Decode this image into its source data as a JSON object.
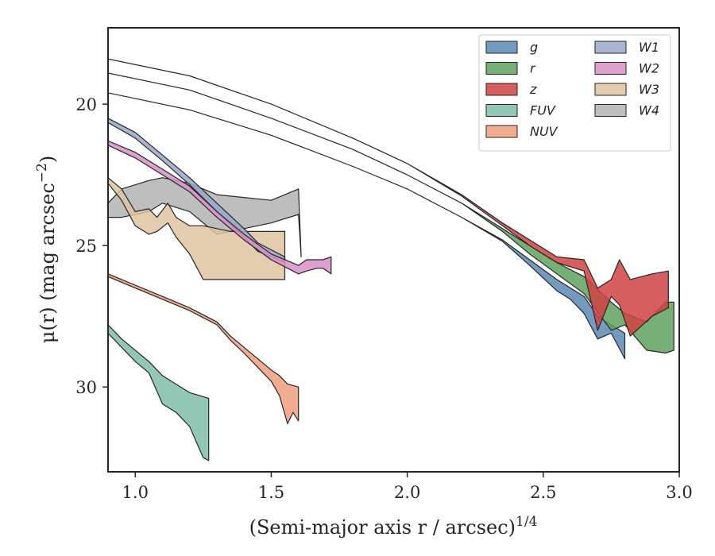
{
  "chart_data": {
    "type": "area",
    "xlabel": "(Semi-major axis r / arcsec)",
    "xlabel_sup": "1/4",
    "ylabel": "μ(r) (mag arcsec",
    "ylabel_sup": "−2",
    "ylabel_close": ")",
    "xlim": [
      0.9,
      3.0
    ],
    "ylim": [
      33.0,
      17.3
    ],
    "y_inverted": true,
    "xticks": [
      1.0,
      1.5,
      2.0,
      2.5,
      3.0
    ],
    "xtick_labels": [
      "1.0",
      "1.5",
      "2.0",
      "2.5",
      "3.0"
    ],
    "yticks": [
      20,
      25,
      30
    ],
    "ytick_labels": [
      "20",
      "25",
      "30"
    ],
    "grid": false,
    "legend_position": "top-right",
    "legend_columns": 2,
    "series": [
      {
        "name": "W4",
        "color": "#b3b3b3",
        "upper": [
          [
            0.9,
            23.5
          ],
          [
            0.95,
            23.0
          ],
          [
            1.05,
            22.7
          ],
          [
            1.1,
            22.6
          ],
          [
            1.2,
            22.8
          ],
          [
            1.3,
            23.2
          ],
          [
            1.5,
            23.4
          ],
          [
            1.6,
            23.0
          ],
          [
            1.61,
            25.4
          ]
        ],
        "lower": [
          [
            0.9,
            24.0
          ],
          [
            0.95,
            24.0
          ],
          [
            1.05,
            23.8
          ],
          [
            1.1,
            23.5
          ],
          [
            1.2,
            23.8
          ],
          [
            1.3,
            24.6
          ],
          [
            1.5,
            24.2
          ],
          [
            1.6,
            23.9
          ],
          [
            1.61,
            25.4
          ]
        ]
      },
      {
        "name": "W3",
        "color": "#dfc4a1",
        "upper": [
          [
            0.9,
            22.6
          ],
          [
            0.95,
            23.0
          ],
          [
            1.0,
            23.8
          ],
          [
            1.05,
            23.7
          ],
          [
            1.08,
            24.0
          ],
          [
            1.12,
            23.5
          ],
          [
            1.15,
            24.0
          ],
          [
            1.2,
            24.3
          ],
          [
            1.25,
            24.3
          ],
          [
            1.35,
            24.5
          ],
          [
            1.55,
            24.5
          ]
        ],
        "lower": [
          [
            0.9,
            22.8
          ],
          [
            0.95,
            23.4
          ],
          [
            1.0,
            24.3
          ],
          [
            1.05,
            24.6
          ],
          [
            1.08,
            24.5
          ],
          [
            1.12,
            24.2
          ],
          [
            1.15,
            24.7
          ],
          [
            1.2,
            25.3
          ],
          [
            1.25,
            26.2
          ],
          [
            1.35,
            26.2
          ],
          [
            1.55,
            26.2
          ]
        ]
      },
      {
        "name": "W1",
        "color": "#99a8c8",
        "upper": [
          [
            0.9,
            20.5
          ],
          [
            1.0,
            21.0
          ],
          [
            1.1,
            21.8
          ],
          [
            1.2,
            22.6
          ],
          [
            1.3,
            23.5
          ],
          [
            1.4,
            24.4
          ],
          [
            1.45,
            24.9
          ],
          [
            1.55,
            25.4
          ]
        ],
        "lower": [
          [
            0.9,
            20.65
          ],
          [
            1.0,
            21.2
          ],
          [
            1.1,
            22.0
          ],
          [
            1.2,
            22.85
          ],
          [
            1.3,
            23.8
          ],
          [
            1.4,
            24.7
          ],
          [
            1.45,
            25.2
          ],
          [
            1.55,
            25.6
          ]
        ]
      },
      {
        "name": "W2",
        "color": "#d891c8",
        "upper": [
          [
            0.9,
            21.3
          ],
          [
            1.0,
            21.7
          ],
          [
            1.1,
            22.3
          ],
          [
            1.2,
            22.9
          ],
          [
            1.3,
            23.8
          ],
          [
            1.4,
            24.6
          ],
          [
            1.5,
            25.3
          ],
          [
            1.6,
            25.7
          ],
          [
            1.63,
            25.5
          ],
          [
            1.67,
            25.5
          ],
          [
            1.69,
            25.5
          ],
          [
            1.72,
            25.4
          ]
        ],
        "lower": [
          [
            0.9,
            21.45
          ],
          [
            1.0,
            21.9
          ],
          [
            1.1,
            22.5
          ],
          [
            1.2,
            23.1
          ],
          [
            1.3,
            24.0
          ],
          [
            1.4,
            24.8
          ],
          [
            1.5,
            25.5
          ],
          [
            1.6,
            26.0
          ],
          [
            1.63,
            25.9
          ],
          [
            1.67,
            25.8
          ],
          [
            1.69,
            25.8
          ],
          [
            1.72,
            26.0
          ]
        ]
      },
      {
        "name": "FUV",
        "color": "#7fbca8",
        "upper": [
          [
            0.9,
            27.8
          ],
          [
            0.95,
            28.3
          ],
          [
            1.0,
            28.7
          ],
          [
            1.05,
            29.1
          ],
          [
            1.1,
            29.6
          ],
          [
            1.15,
            29.9
          ],
          [
            1.2,
            30.2
          ],
          [
            1.27,
            30.4
          ]
        ],
        "lower": [
          [
            0.9,
            28.1
          ],
          [
            0.95,
            28.6
          ],
          [
            1.0,
            29.1
          ],
          [
            1.05,
            29.5
          ],
          [
            1.1,
            30.6
          ],
          [
            1.15,
            30.9
          ],
          [
            1.2,
            31.4
          ],
          [
            1.25,
            32.5
          ],
          [
            1.27,
            32.6
          ]
        ]
      },
      {
        "name": "NUV",
        "color": "#ee9e7f",
        "upper": [
          [
            0.9,
            26.0
          ],
          [
            1.0,
            26.4
          ],
          [
            1.1,
            26.8
          ],
          [
            1.2,
            27.2
          ],
          [
            1.3,
            27.7
          ],
          [
            1.35,
            28.2
          ],
          [
            1.4,
            28.6
          ],
          [
            1.45,
            29.0
          ],
          [
            1.5,
            29.4
          ],
          [
            1.53,
            29.6
          ],
          [
            1.56,
            29.9
          ],
          [
            1.6,
            30.0
          ]
        ],
        "lower": [
          [
            0.9,
            26.1
          ],
          [
            1.0,
            26.5
          ],
          [
            1.1,
            26.9
          ],
          [
            1.2,
            27.3
          ],
          [
            1.3,
            27.8
          ],
          [
            1.35,
            28.35
          ],
          [
            1.4,
            28.8
          ],
          [
            1.45,
            29.3
          ],
          [
            1.5,
            29.8
          ],
          [
            1.53,
            30.3
          ],
          [
            1.56,
            31.3
          ],
          [
            1.58,
            30.9
          ],
          [
            1.6,
            31.2
          ]
        ]
      },
      {
        "name": "g",
        "color": "#5a8ab5",
        "upper": [
          [
            0.9,
            19.6
          ],
          [
            1.2,
            20.2
          ],
          [
            1.5,
            21.1
          ],
          [
            1.8,
            22.2
          ],
          [
            2.0,
            23.0
          ],
          [
            2.2,
            24.0
          ],
          [
            2.35,
            24.8
          ],
          [
            2.45,
            25.5
          ],
          [
            2.55,
            26.2
          ],
          [
            2.6,
            26.5
          ],
          [
            2.65,
            26.8
          ],
          [
            2.7,
            27.5
          ],
          [
            2.75,
            27.8
          ],
          [
            2.8,
            28.1
          ]
        ],
        "lower": [
          [
            0.9,
            19.6
          ],
          [
            1.2,
            20.2
          ],
          [
            1.5,
            21.1
          ],
          [
            1.8,
            22.2
          ],
          [
            2.0,
            23.0
          ],
          [
            2.2,
            24.0
          ],
          [
            2.35,
            24.85
          ],
          [
            2.45,
            25.7
          ],
          [
            2.55,
            26.6
          ],
          [
            2.6,
            26.9
          ],
          [
            2.65,
            27.4
          ],
          [
            2.7,
            28.3
          ],
          [
            2.75,
            28.1
          ],
          [
            2.8,
            29.0
          ]
        ]
      },
      {
        "name": "r",
        "color": "#5fa25f",
        "upper": [
          [
            0.9,
            18.9
          ],
          [
            1.2,
            19.5
          ],
          [
            1.5,
            20.5
          ],
          [
            1.8,
            21.6
          ],
          [
            2.0,
            22.5
          ],
          [
            2.2,
            23.5
          ],
          [
            2.35,
            24.4
          ],
          [
            2.45,
            25.0
          ],
          [
            2.55,
            25.6
          ],
          [
            2.65,
            26.1
          ],
          [
            2.75,
            27.0
          ],
          [
            2.8,
            27.4
          ],
          [
            2.88,
            27.7
          ],
          [
            2.95,
            27.0
          ],
          [
            2.98,
            27.0
          ]
        ],
        "lower": [
          [
            0.9,
            18.9
          ],
          [
            1.2,
            19.5
          ],
          [
            1.5,
            20.5
          ],
          [
            1.8,
            21.6
          ],
          [
            2.0,
            22.5
          ],
          [
            2.2,
            23.5
          ],
          [
            2.35,
            24.5
          ],
          [
            2.45,
            25.3
          ],
          [
            2.55,
            26.0
          ],
          [
            2.65,
            26.7
          ],
          [
            2.75,
            28.0
          ],
          [
            2.8,
            27.8
          ],
          [
            2.88,
            28.7
          ],
          [
            2.95,
            28.8
          ],
          [
            2.98,
            28.7
          ]
        ]
      },
      {
        "name": "z",
        "color": "#cf4242",
        "upper": [
          [
            0.9,
            18.4
          ],
          [
            1.2,
            19.0
          ],
          [
            1.5,
            20.0
          ],
          [
            1.8,
            21.2
          ],
          [
            2.0,
            22.1
          ],
          [
            2.2,
            23.2
          ],
          [
            2.35,
            24.2
          ],
          [
            2.45,
            24.8
          ],
          [
            2.55,
            25.4
          ],
          [
            2.65,
            25.5
          ],
          [
            2.7,
            26.5
          ],
          [
            2.75,
            26.2
          ],
          [
            2.78,
            25.5
          ],
          [
            2.82,
            26.2
          ],
          [
            2.9,
            26.0
          ],
          [
            2.96,
            25.9
          ]
        ],
        "lower": [
          [
            0.9,
            18.4
          ],
          [
            1.2,
            19.0
          ],
          [
            1.5,
            20.0
          ],
          [
            1.8,
            21.2
          ],
          [
            2.0,
            22.1
          ],
          [
            2.2,
            23.25
          ],
          [
            2.35,
            24.3
          ],
          [
            2.45,
            25.0
          ],
          [
            2.55,
            25.6
          ],
          [
            2.65,
            25.9
          ],
          [
            2.7,
            28.0
          ],
          [
            2.75,
            26.8
          ],
          [
            2.78,
            27.1
          ],
          [
            2.82,
            28.2
          ],
          [
            2.9,
            27.5
          ],
          [
            2.96,
            27.2
          ]
        ]
      }
    ],
    "legend": {
      "left_column": [
        "g",
        "r",
        "z",
        "FUV",
        "NUV"
      ],
      "right_column": [
        "W1",
        "W2",
        "W3",
        "W4"
      ]
    }
  }
}
